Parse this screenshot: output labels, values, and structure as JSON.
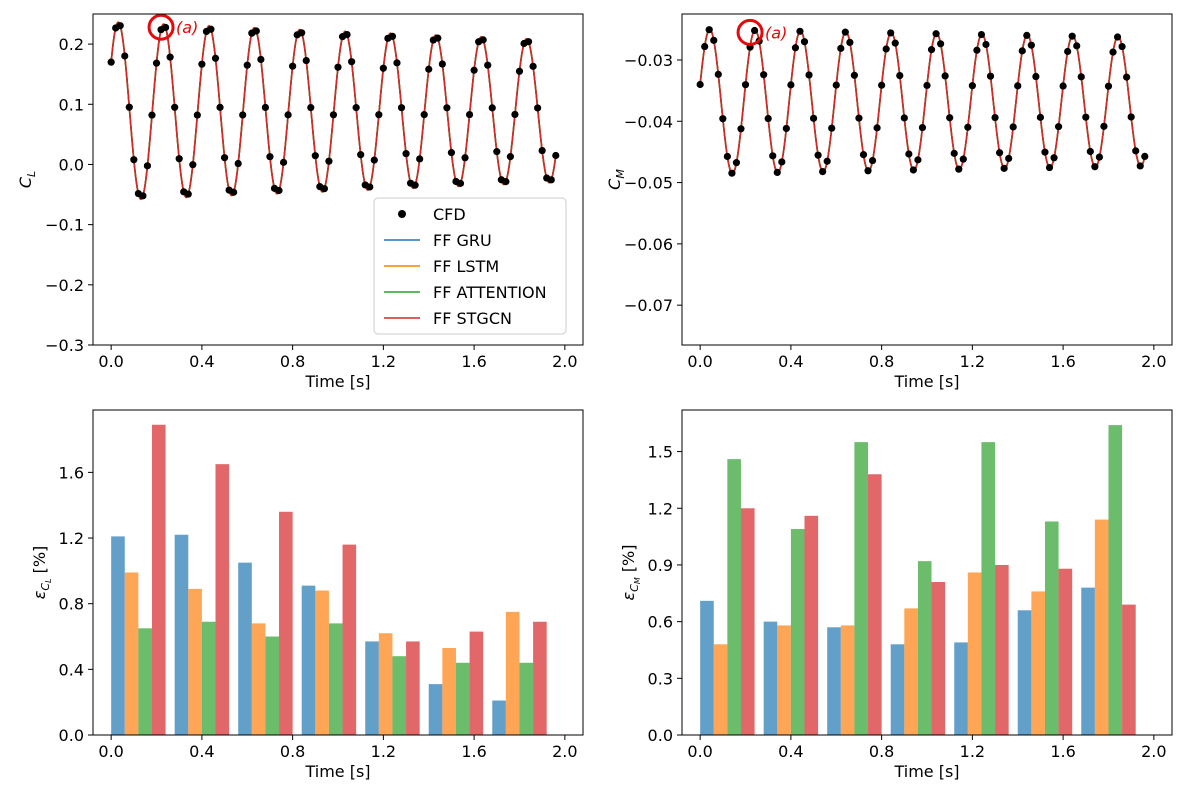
{
  "figure": {
    "background": "#ffffff"
  },
  "colors": {
    "cfd": "#000000",
    "gru": "#1f77b4",
    "lstm": "#ff7f0e",
    "attention": "#2ca02c",
    "stgcn": "#d62728",
    "bar_blue": "#1f77b4",
    "bar_orange": "#ff7f0e",
    "bar_green": "#2ca02c",
    "bar_red": "#d62728",
    "marker": "#e6080b"
  },
  "chart_data": [
    {
      "id": "cl",
      "type": "line",
      "title": "",
      "xlabel": "Time [s]",
      "ylabel": "C",
      "ylabel_sub": "L",
      "xlim": [
        -0.08,
        2.08
      ],
      "ylim": [
        -0.3,
        0.25
      ],
      "xticks": [
        0.0,
        0.4,
        0.8,
        1.2,
        1.6,
        2.0
      ],
      "xtick_labels": [
        "0.0",
        "0.4",
        "0.8",
        "1.2",
        "1.6",
        "2.0"
      ],
      "yticks": [
        -0.3,
        -0.2,
        -0.1,
        0.0,
        0.1,
        0.2
      ],
      "ytick_labels": [
        "−0.3",
        "−0.2",
        "−0.1",
        "0.0",
        "0.1",
        "0.2"
      ],
      "grid": false,
      "signal": {
        "t0": 0.0,
        "t1": 1.96,
        "period": 0.2,
        "offset": 0.0885,
        "amplitude_start": 0.148,
        "amplitude_end": 0.118,
        "damping_end": 0.03,
        "phase_start_value": 0.17
      },
      "cfd_sample_interval": 0.02,
      "series": [
        "CFD",
        "FF GRU",
        "FF LSTM",
        "FF ATTENTION",
        "FF STGCN"
      ],
      "legend": {
        "position": "lower-right",
        "entries": [
          {
            "label": "CFD",
            "kind": "marker",
            "color": "#000000"
          },
          {
            "label": "FF GRU",
            "kind": "line",
            "color": "#1f77b4"
          },
          {
            "label": "FF LSTM",
            "kind": "line",
            "color": "#ff7f0e"
          },
          {
            "label": "FF ATTENTION",
            "kind": "line",
            "color": "#2ca02c"
          },
          {
            "label": "FF STGCN",
            "kind": "line",
            "color": "#d62728"
          }
        ]
      },
      "annotation": {
        "text": "(a)",
        "x": 0.22,
        "y": 0.228
      }
    },
    {
      "id": "cm",
      "type": "line",
      "title": "",
      "xlabel": "Time [s]",
      "ylabel": "C",
      "ylabel_sub": "M",
      "xlim": [
        -0.08,
        2.08
      ],
      "ylim": [
        -0.0765,
        -0.0225
      ],
      "xticks": [
        0.0,
        0.4,
        0.8,
        1.2,
        1.6,
        2.0
      ],
      "xtick_labels": [
        "0.0",
        "0.4",
        "0.8",
        "1.2",
        "1.6",
        "2.0"
      ],
      "yticks": [
        -0.07,
        -0.06,
        -0.05,
        -0.04,
        -0.03
      ],
      "ytick_labels": [
        "−0.07",
        "−0.06",
        "−0.05",
        "−0.04",
        "−0.03"
      ],
      "grid": false,
      "signal": {
        "t0": 0.0,
        "t1": 1.96,
        "period": 0.2,
        "offset": -0.0368,
        "amplitude_start": 0.0118,
        "amplitude_end": 0.0105,
        "damping_end": 0.0,
        "phase_start_value": -0.034
      },
      "cfd_sample_interval": 0.02,
      "series": [
        "CFD",
        "FF GRU",
        "FF LSTM",
        "FF ATTENTION",
        "FF STGCN"
      ],
      "annotation": {
        "text": "(a)",
        "x": 0.22,
        "y": -0.0255
      }
    },
    {
      "id": "ecl",
      "type": "bar",
      "title": "",
      "xlabel": "Time [s]",
      "ylabel": "ε",
      "ylabel_sub": "C",
      "ylabel_subsub": "L",
      "ylabel_unit": " [%]",
      "xlim": [
        -0.08,
        2.08
      ],
      "ylim": [
        0.0,
        1.98
      ],
      "xticks": [
        0.0,
        0.4,
        0.8,
        1.2,
        1.6,
        2.0
      ],
      "xtick_labels": [
        "0.0",
        "0.4",
        "0.8",
        "1.2",
        "1.6",
        "2.0"
      ],
      "yticks": [
        0.0,
        0.4,
        0.8,
        1.2,
        1.6
      ],
      "ytick_labels": [
        "0.0",
        "0.4",
        "0.8",
        "1.2",
        "1.6"
      ],
      "grid": false,
      "group_starts": [
        0.0,
        0.28,
        0.56,
        0.84,
        1.12,
        1.4,
        1.68
      ],
      "bar_width": 0.06,
      "series": [
        {
          "name": "FF GRU",
          "color": "#1f77b4",
          "values": [
            1.21,
            1.22,
            1.05,
            0.91,
            0.57,
            0.31,
            0.21
          ]
        },
        {
          "name": "FF LSTM",
          "color": "#ff7f0e",
          "values": [
            0.99,
            0.89,
            0.68,
            0.88,
            0.62,
            0.53,
            0.75
          ]
        },
        {
          "name": "FF ATTENTION",
          "color": "#2ca02c",
          "values": [
            0.65,
            0.69,
            0.6,
            0.68,
            0.48,
            0.44,
            0.44
          ]
        },
        {
          "name": "FF STGCN",
          "color": "#d62728",
          "values": [
            1.89,
            1.65,
            1.36,
            1.16,
            0.57,
            0.63,
            0.69
          ]
        }
      ]
    },
    {
      "id": "ecm",
      "type": "bar",
      "title": "",
      "xlabel": "Time [s]",
      "ylabel": "ε",
      "ylabel_sub": "C",
      "ylabel_subsub": "M",
      "ylabel_unit": " [%]",
      "xlim": [
        -0.08,
        2.08
      ],
      "ylim": [
        0.0,
        1.72
      ],
      "xticks": [
        0.0,
        0.4,
        0.8,
        1.2,
        1.6,
        2.0
      ],
      "xtick_labels": [
        "0.0",
        "0.4",
        "0.8",
        "1.2",
        "1.6",
        "2.0"
      ],
      "yticks": [
        0.0,
        0.3,
        0.6,
        0.9,
        1.2,
        1.5
      ],
      "ytick_labels": [
        "0.0",
        "0.3",
        "0.6",
        "0.9",
        "1.2",
        "1.5"
      ],
      "grid": false,
      "group_starts": [
        0.0,
        0.28,
        0.56,
        0.84,
        1.12,
        1.4,
        1.68
      ],
      "bar_width": 0.06,
      "series": [
        {
          "name": "FF GRU",
          "color": "#1f77b4",
          "values": [
            0.71,
            0.6,
            0.57,
            0.48,
            0.49,
            0.66,
            0.78
          ]
        },
        {
          "name": "FF LSTM",
          "color": "#ff7f0e",
          "values": [
            0.48,
            0.58,
            0.58,
            0.67,
            0.86,
            0.76,
            1.14
          ]
        },
        {
          "name": "FF ATTENTION",
          "color": "#2ca02c",
          "values": [
            1.46,
            1.09,
            1.55,
            0.92,
            1.55,
            1.13,
            1.64
          ]
        },
        {
          "name": "FF STGCN",
          "color": "#d62728",
          "values": [
            1.2,
            1.16,
            1.38,
            0.81,
            0.9,
            0.88,
            0.69
          ]
        }
      ]
    }
  ]
}
